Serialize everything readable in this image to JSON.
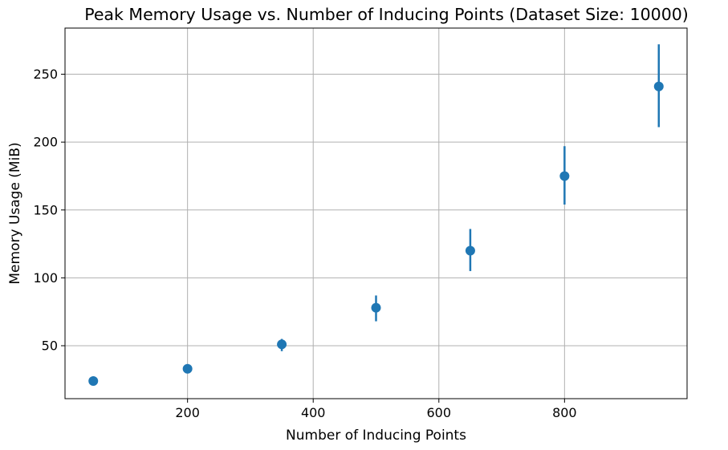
{
  "chart_data": {
    "type": "scatter",
    "title": "Peak Memory Usage vs. Number of Inducing Points (Dataset Size: 10000)",
    "xlabel": "Number of Inducing Points",
    "ylabel": "Memory Usage (MiB)",
    "xlim": [
      5,
      995
    ],
    "ylim": [
      11,
      284
    ],
    "xticks": [
      200,
      400,
      600,
      800
    ],
    "yticks": [
      50,
      100,
      150,
      200,
      250
    ],
    "x_tick_labels": [
      "200",
      "400",
      "600",
      "800"
    ],
    "y_tick_labels": [
      "50",
      "100",
      "150",
      "200",
      "250"
    ],
    "grid": true,
    "error_bars": true,
    "series": [
      {
        "x": [
          50,
          200,
          350,
          500,
          650,
          800,
          950
        ],
        "y": [
          24,
          33,
          51,
          78,
          120,
          175,
          241
        ],
        "yerr_low": [
          24,
          33,
          46,
          68,
          105,
          154,
          211
        ],
        "yerr_high": [
          24,
          33,
          55,
          87,
          136,
          197,
          272
        ],
        "color": "#1f77b4"
      }
    ],
    "colors": {
      "grid": "#b0b0b0",
      "axes": "#000000"
    }
  }
}
